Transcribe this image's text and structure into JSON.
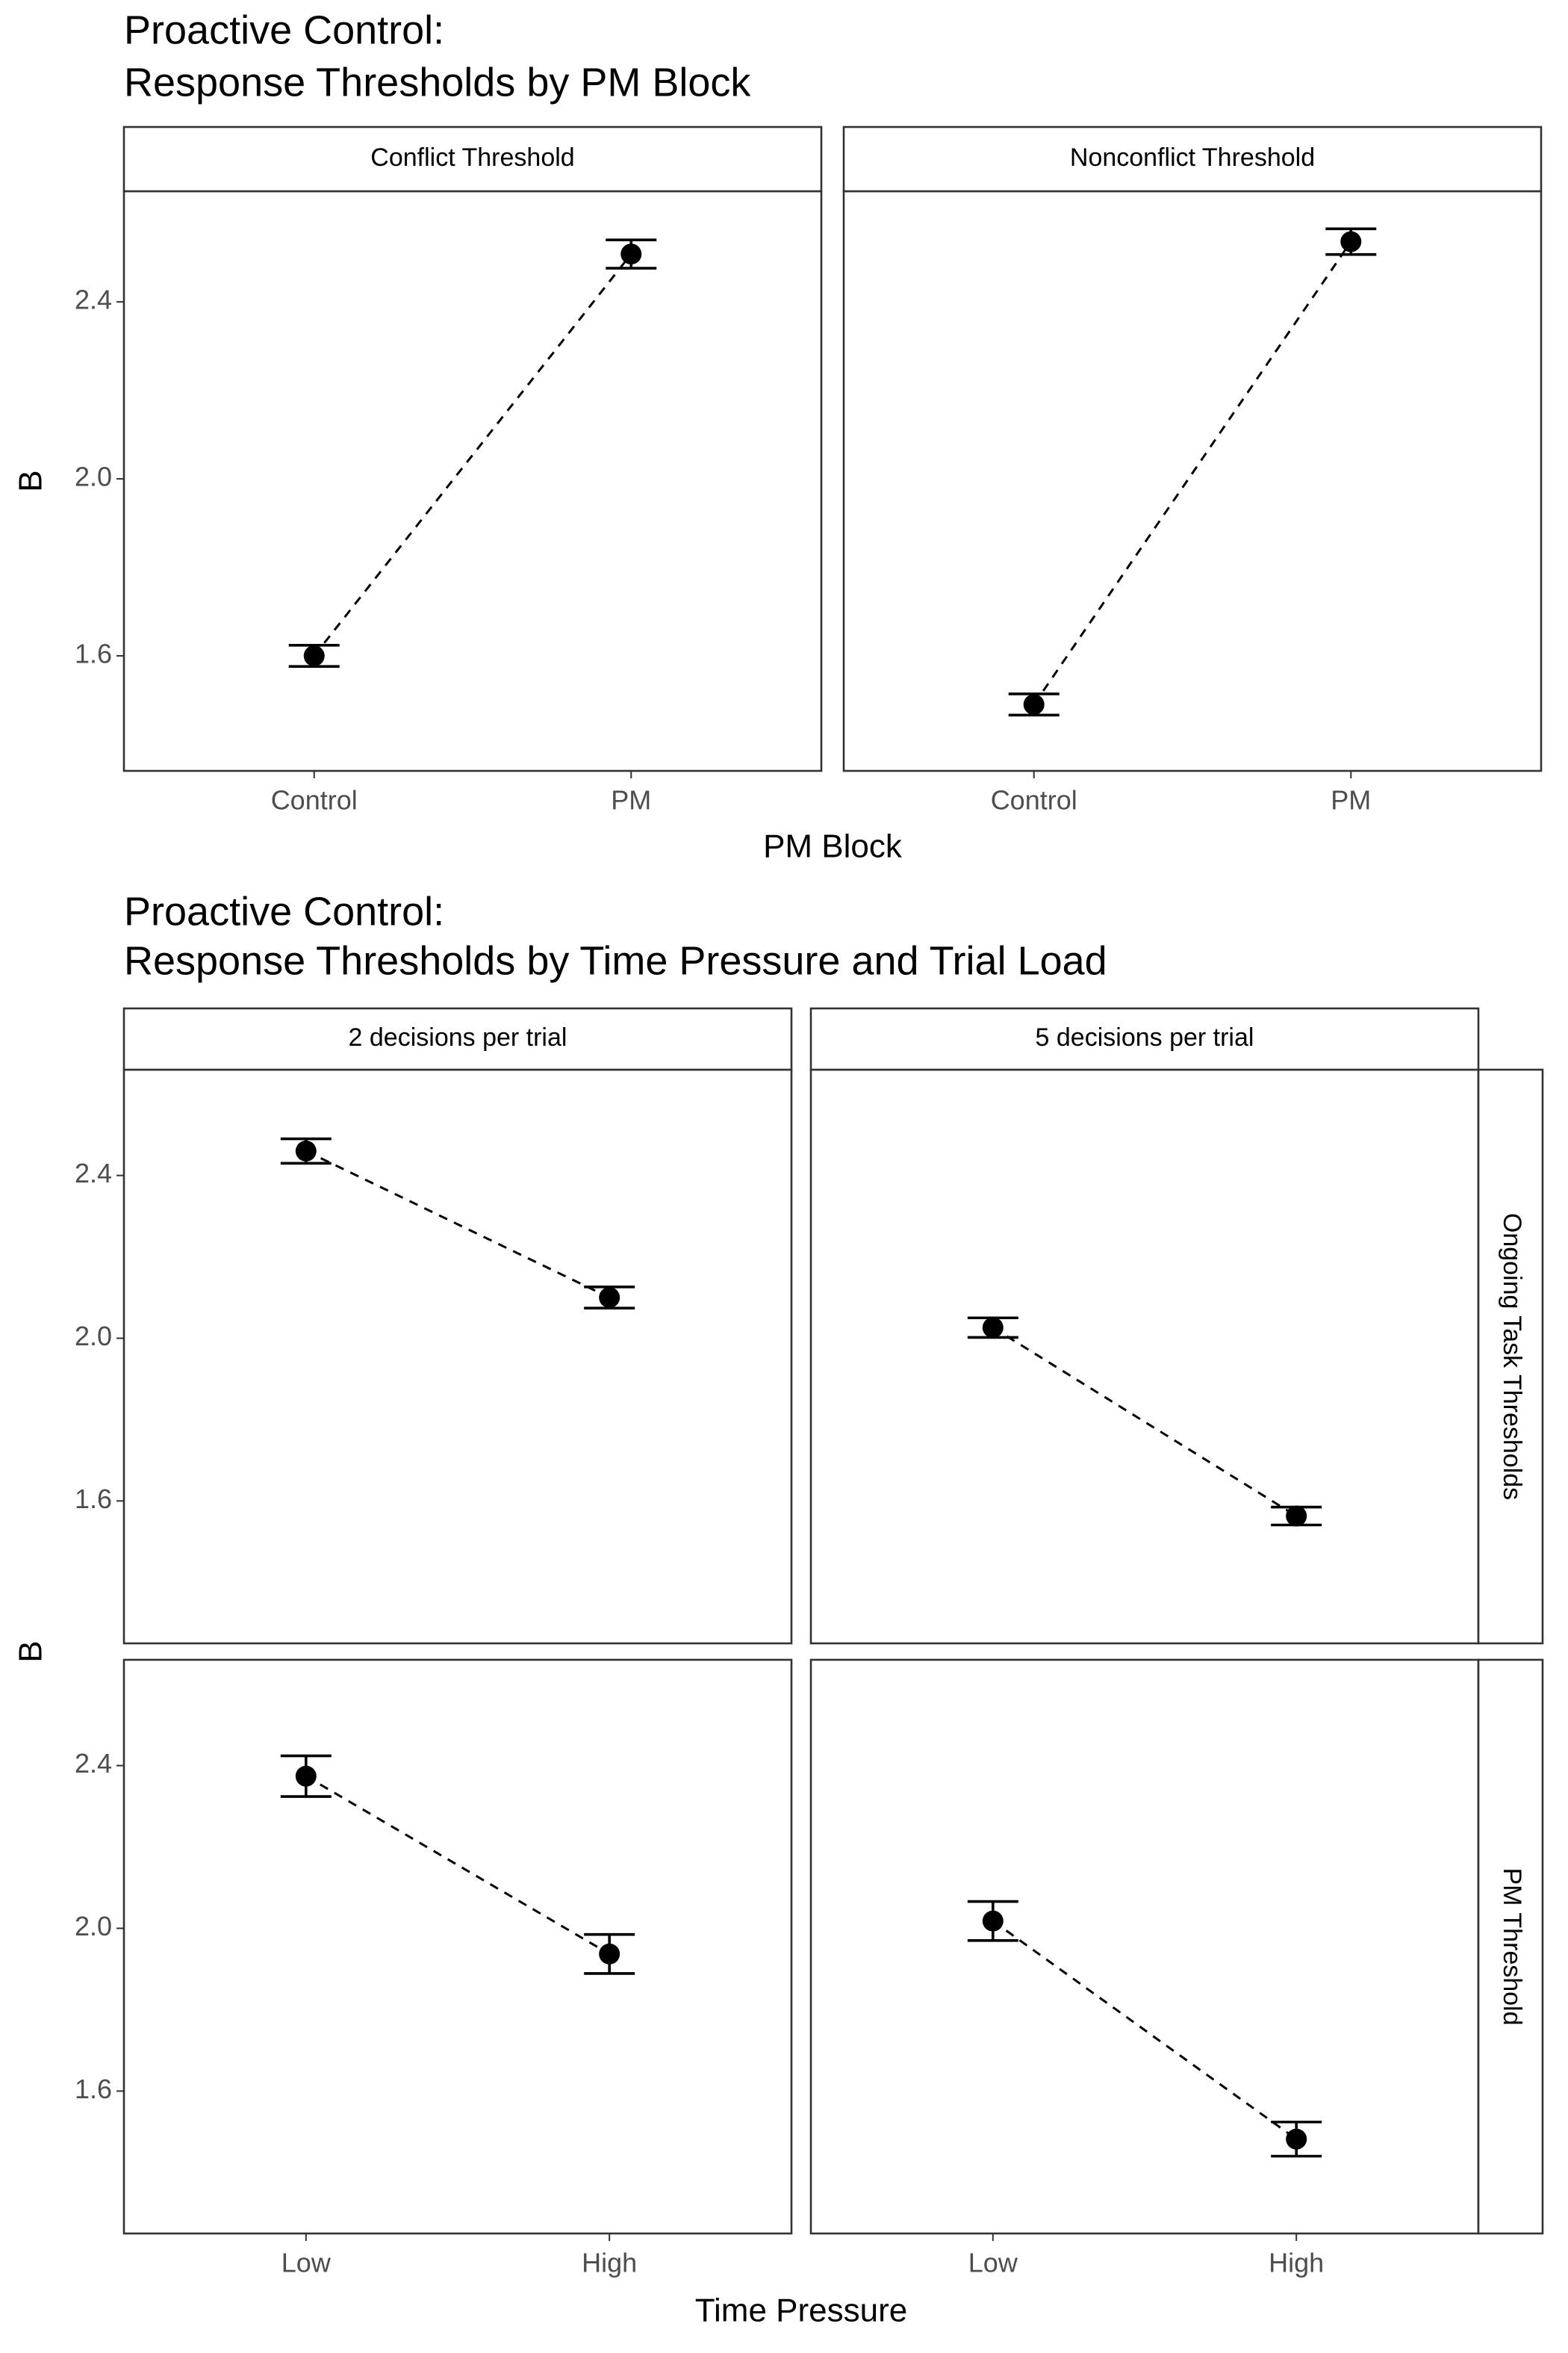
{
  "chart_data": [
    {
      "type": "line",
      "title": [
        "Proactive Control:",
        "Response Thresholds by PM Block"
      ],
      "x_label": "PM Block",
      "y_label": "B",
      "color": "#000000",
      "categories": [
        "Control",
        "PM"
      ],
      "ylim": [
        1.34,
        2.65
      ],
      "yticks": [
        1.6,
        2.0,
        2.4
      ],
      "yticks_labels": [
        "1.6",
        "2.0",
        "2.4"
      ],
      "panels": [
        [
          {
            "facet": "Conflict Threshold",
            "values": [
              1.6,
              2.508
            ],
            "errors": [
              0.024,
              0.032
            ]
          },
          {
            "facet": "Nonconflict Threshold",
            "values": [
              1.49,
              2.536
            ],
            "errors": [
              0.024,
              0.029
            ]
          }
        ]
      ]
    },
    {
      "type": "line",
      "title": [
        "Proactive Control:",
        "Response Thresholds by Time Pressure and Trial Load"
      ],
      "x_label": "Time Pressure",
      "y_label": "B",
      "color": "#000000",
      "categories": [
        "Low",
        "High"
      ],
      "ylim": [
        1.25,
        2.66
      ],
      "yticks": [
        1.6,
        2.0,
        2.4
      ],
      "yticks_labels": [
        "1.6",
        "2.0",
        "2.4"
      ],
      "column_facets": [
        "2 decisions per trial",
        "5 decisions per trial"
      ],
      "row_facets": [
        "Ongoing Task Thresholds",
        "PM Threshold"
      ],
      "panels": [
        [
          {
            "values": [
              2.46,
              2.1
            ],
            "errors": [
              0.03,
              0.026
            ]
          },
          {
            "values": [
              2.026,
              1.563
            ],
            "errors": [
              0.024,
              0.022
            ]
          }
        ],
        [
          {
            "values": [
              2.374,
              1.937
            ],
            "errors": [
              0.05,
              0.048
            ]
          },
          {
            "values": [
              2.018,
              1.482
            ],
            "errors": [
              0.048,
              0.042
            ]
          }
        ]
      ]
    }
  ]
}
